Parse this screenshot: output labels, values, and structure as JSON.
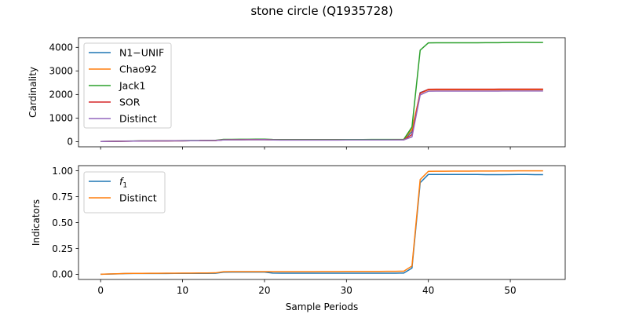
{
  "figure": {
    "title": "stone circle (Q1935728)"
  },
  "chart_data": [
    {
      "type": "line",
      "name": "cardinality-panel",
      "ylabel": "Cardinality",
      "xlabel": "",
      "xlim": [
        -2.7,
        56.7
      ],
      "ylim": [
        -220,
        4410
      ],
      "xticks": [
        0,
        10,
        20,
        30,
        40,
        50
      ],
      "yticks": [
        0,
        1000,
        2000,
        3000,
        4000
      ],
      "show_xtick_labels": false,
      "legend": "upper-left",
      "x": [
        0,
        1,
        2,
        3,
        4,
        5,
        6,
        7,
        8,
        9,
        10,
        11,
        12,
        13,
        14,
        15,
        16,
        17,
        18,
        19,
        20,
        21,
        22,
        23,
        24,
        25,
        26,
        27,
        28,
        29,
        30,
        31,
        32,
        33,
        34,
        35,
        36,
        37,
        38,
        39,
        40,
        41,
        42,
        43,
        44,
        45,
        46,
        47,
        48,
        49,
        50,
        51,
        52,
        53,
        54
      ],
      "series": [
        {
          "name": "N1−UNIF",
          "color": "#1f77b4",
          "values": [
            5,
            8,
            12,
            18,
            22,
            24,
            26,
            28,
            30,
            32,
            35,
            38,
            40,
            42,
            45,
            75,
            78,
            80,
            82,
            84,
            85,
            75,
            70,
            70,
            70,
            70,
            70,
            70,
            71,
            71,
            72,
            72,
            72,
            73,
            73,
            73,
            74,
            75,
            420,
            2080,
            2210,
            2210,
            2210,
            2210,
            2210,
            2210,
            2210,
            2210,
            2210,
            2212,
            2215,
            2215,
            2215,
            2215,
            2215
          ]
        },
        {
          "name": "Chao92",
          "color": "#ff7f0e",
          "values": [
            5,
            8,
            12,
            18,
            22,
            24,
            26,
            28,
            30,
            32,
            35,
            38,
            40,
            42,
            45,
            75,
            78,
            80,
            82,
            84,
            85,
            75,
            70,
            70,
            70,
            70,
            70,
            70,
            71,
            71,
            72,
            72,
            72,
            73,
            73,
            73,
            74,
            75,
            520,
            2050,
            2200,
            2200,
            2200,
            2200,
            2200,
            2200,
            2200,
            2200,
            2200,
            2200,
            2205,
            2205,
            2205,
            2205,
            2205
          ]
        },
        {
          "name": "Jack1",
          "color": "#2ca02c",
          "values": [
            6,
            10,
            15,
            22,
            27,
            29,
            31,
            33,
            35,
            38,
            42,
            45,
            47,
            50,
            53,
            95,
            98,
            100,
            102,
            104,
            105,
            92,
            88,
            88,
            88,
            88,
            88,
            88,
            89,
            89,
            90,
            90,
            90,
            91,
            91,
            91,
            92,
            93,
            620,
            3880,
            4190,
            4195,
            4195,
            4195,
            4195,
            4195,
            4195,
            4198,
            4198,
            4200,
            4205,
            4210,
            4210,
            4205,
            4205
          ]
        },
        {
          "name": "SOR",
          "color": "#d62728",
          "values": [
            5,
            8,
            12,
            18,
            22,
            24,
            26,
            28,
            30,
            32,
            35,
            38,
            40,
            42,
            45,
            75,
            78,
            80,
            82,
            84,
            85,
            75,
            70,
            70,
            70,
            70,
            70,
            70,
            71,
            71,
            72,
            72,
            72,
            73,
            73,
            73,
            74,
            75,
            300,
            2060,
            2220,
            2225,
            2225,
            2225,
            2225,
            2225,
            2225,
            2225,
            2225,
            2228,
            2230,
            2230,
            2230,
            2230,
            2230
          ]
        },
        {
          "name": "Distinct",
          "color": "#9467bd",
          "values": [
            5,
            8,
            12,
            18,
            22,
            24,
            26,
            28,
            30,
            32,
            35,
            38,
            40,
            42,
            45,
            72,
            75,
            77,
            79,
            81,
            82,
            72,
            68,
            68,
            68,
            68,
            68,
            68,
            69,
            69,
            70,
            70,
            70,
            71,
            71,
            71,
            72,
            73,
            200,
            1980,
            2140,
            2145,
            2145,
            2145,
            2145,
            2145,
            2145,
            2145,
            2145,
            2148,
            2150,
            2150,
            2150,
            2150,
            2150
          ]
        }
      ]
    },
    {
      "type": "line",
      "name": "indicators-panel",
      "ylabel": "Indicators",
      "xlabel": "Sample Periods",
      "xlim": [
        -2.7,
        56.7
      ],
      "ylim": [
        -0.05,
        1.05
      ],
      "xticks": [
        0,
        10,
        20,
        30,
        40,
        50
      ],
      "yticks": [
        0.0,
        0.25,
        0.5,
        0.75,
        1.0
      ],
      "ytick_labels": [
        "0.00",
        "0.25",
        "0.50",
        "0.75",
        "1.00"
      ],
      "show_xtick_labels": true,
      "legend": "upper-left",
      "x": [
        0,
        1,
        2,
        3,
        4,
        5,
        6,
        7,
        8,
        9,
        10,
        11,
        12,
        13,
        14,
        15,
        16,
        17,
        18,
        19,
        20,
        21,
        22,
        23,
        24,
        25,
        26,
        27,
        28,
        29,
        30,
        31,
        32,
        33,
        34,
        35,
        36,
        37,
        38,
        39,
        40,
        41,
        42,
        43,
        44,
        45,
        46,
        47,
        48,
        49,
        50,
        51,
        52,
        53,
        54
      ],
      "series": [
        {
          "name": "f1",
          "color": "#1f77b4",
          "values": [
            0.0,
            0.002,
            0.004,
            0.007,
            0.008,
            0.008,
            0.008,
            0.008,
            0.008,
            0.009,
            0.009,
            0.009,
            0.009,
            0.009,
            0.01,
            0.02,
            0.021,
            0.021,
            0.021,
            0.021,
            0.021,
            0.012,
            0.011,
            0.011,
            0.011,
            0.011,
            0.011,
            0.011,
            0.011,
            0.011,
            0.011,
            0.011,
            0.011,
            0.011,
            0.011,
            0.011,
            0.011,
            0.012,
            0.06,
            0.885,
            0.965,
            0.965,
            0.965,
            0.965,
            0.965,
            0.965,
            0.965,
            0.963,
            0.963,
            0.963,
            0.964,
            0.965,
            0.965,
            0.963,
            0.963
          ]
        },
        {
          "name": "Distinct",
          "color": "#ff7f0e",
          "values": [
            0.0,
            0.003,
            0.005,
            0.008,
            0.009,
            0.009,
            0.01,
            0.01,
            0.011,
            0.011,
            0.012,
            0.012,
            0.013,
            0.013,
            0.014,
            0.025,
            0.026,
            0.026,
            0.026,
            0.026,
            0.026,
            0.026,
            0.026,
            0.026,
            0.026,
            0.026,
            0.026,
            0.027,
            0.027,
            0.027,
            0.028,
            0.028,
            0.028,
            0.028,
            0.028,
            0.029,
            0.029,
            0.03,
            0.08,
            0.915,
            0.995,
            0.996,
            0.996,
            0.997,
            0.997,
            0.997,
            0.998,
            0.998,
            0.998,
            0.999,
            0.999,
            1.0,
            1.0,
            1.0,
            1.0
          ]
        }
      ]
    }
  ]
}
